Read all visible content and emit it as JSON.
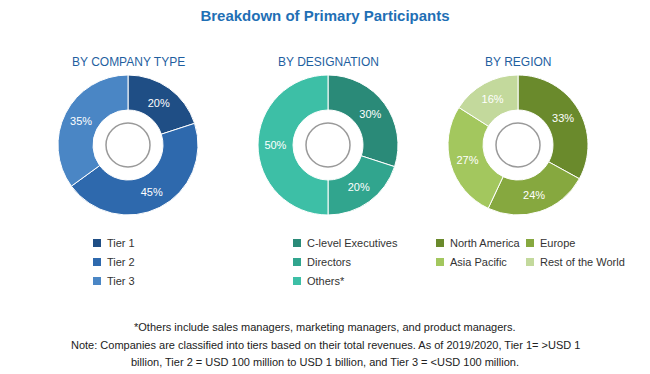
{
  "title": "Breakdown of Primary Participants",
  "chart_data": [
    {
      "type": "donut",
      "title": "BY COMPANY TYPE",
      "categories": [
        "Tier 1",
        "Tier 2",
        "Tier 3"
      ],
      "values": [
        20,
        45,
        35
      ],
      "value_labels": [
        "20%",
        "45%",
        "35%"
      ],
      "colors": [
        "#1f4e85",
        "#2e69ad",
        "#4a86c5"
      ],
      "data_labels": true
    },
    {
      "type": "donut",
      "title": "BY DESIGNATION",
      "categories": [
        "C-level Executives",
        "Directors",
        "Others*"
      ],
      "values": [
        30,
        20,
        50
      ],
      "value_labels": [
        "30%",
        "20%",
        "50%"
      ],
      "colors": [
        "#2a8a78",
        "#31a58e",
        "#3dbfa6"
      ],
      "data_labels": true
    },
    {
      "type": "donut",
      "title": "BY REGION",
      "categories": [
        "North America",
        "Europe",
        "Asia Pacific",
        "Rest of the World"
      ],
      "values": [
        33,
        24,
        27,
        16
      ],
      "value_labels": [
        "33%",
        "24%",
        "27%",
        "16%"
      ],
      "colors": [
        "#6a8a2c",
        "#86a83f",
        "#a3c75e",
        "#c3d99c"
      ],
      "data_labels": true
    }
  ],
  "notes": [
    "*Others include sales managers, marketing managers, and product managers.",
    "Note: Companies are classified into tiers based on their total revenues. As of 2019/2020, Tier 1= >USD 1",
    "billion, Tier 2 = USD 100 million to USD 1 billion, and Tier 3 = <USD 100 million."
  ]
}
